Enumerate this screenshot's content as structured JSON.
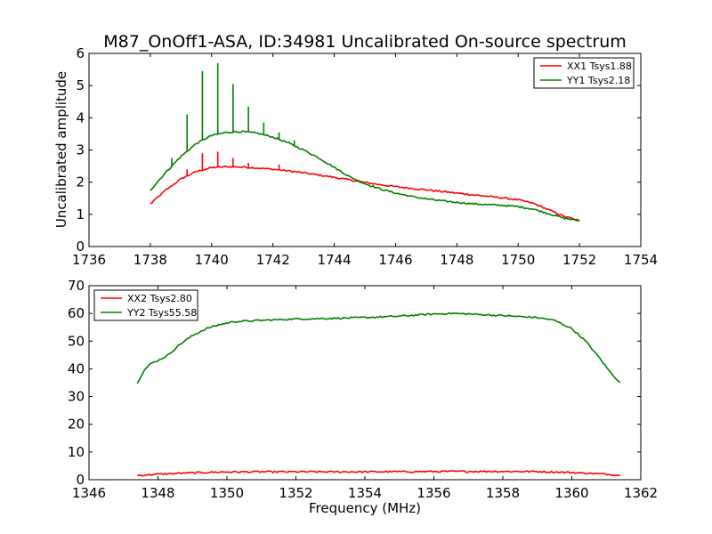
{
  "chart_data": [
    {
      "type": "line",
      "title": "M87_OnOff1-ASA, ID:34981 Uncalibrated On-source spectrum",
      "xlabel": "",
      "ylabel": "Uncalibrated amplitude",
      "xlim": [
        1736,
        1754
      ],
      "ylim": [
        0,
        6
      ],
      "xticks": [
        "1736",
        "1738",
        "1740",
        "1742",
        "1744",
        "1746",
        "1748",
        "1750",
        "1752",
        "1754"
      ],
      "yticks": [
        "0",
        "1",
        "2",
        "3",
        "4",
        "5",
        "6"
      ],
      "legend_placement": "top-right",
      "series": [
        {
          "name": "XX1 Tsys1.88",
          "color": "#ff0000",
          "x": [
            1738.0,
            1738.5,
            1739.0,
            1739.5,
            1740.0,
            1740.5,
            1741.0,
            1741.5,
            1742.0,
            1742.5,
            1743.0,
            1743.5,
            1744.0,
            1744.5,
            1745.0,
            1745.5,
            1746.0,
            1746.5,
            1747.0,
            1747.5,
            1748.0,
            1748.5,
            1749.0,
            1749.5,
            1750.0,
            1750.5,
            1751.0,
            1751.5,
            1752.0
          ],
          "y": [
            1.32,
            1.75,
            2.1,
            2.33,
            2.45,
            2.48,
            2.47,
            2.44,
            2.4,
            2.35,
            2.29,
            2.22,
            2.15,
            2.07,
            1.99,
            1.92,
            1.86,
            1.81,
            1.76,
            1.71,
            1.66,
            1.61,
            1.56,
            1.51,
            1.45,
            1.34,
            1.14,
            0.94,
            0.8
          ],
          "spikes": [
            {
              "x": 1739.2,
              "y": 2.4
            },
            {
              "x": 1739.7,
              "y": 2.9
            },
            {
              "x": 1740.2,
              "y": 2.95
            },
            {
              "x": 1740.7,
              "y": 2.75
            },
            {
              "x": 1741.2,
              "y": 2.6
            },
            {
              "x": 1742.2,
              "y": 2.55
            }
          ]
        },
        {
          "name": "YY1 Tsys2.18",
          "color": "#008000",
          "x": [
            1738.0,
            1738.5,
            1739.0,
            1739.5,
            1740.0,
            1740.5,
            1741.0,
            1741.5,
            1742.0,
            1742.5,
            1743.0,
            1743.5,
            1744.0,
            1744.5,
            1745.0,
            1745.5,
            1746.0,
            1746.5,
            1747.0,
            1747.5,
            1748.0,
            1748.5,
            1749.0,
            1749.5,
            1750.0,
            1750.5,
            1751.0,
            1751.5,
            1752.0
          ],
          "y": [
            1.75,
            2.3,
            2.8,
            3.2,
            3.45,
            3.55,
            3.57,
            3.52,
            3.4,
            3.22,
            3.0,
            2.75,
            2.46,
            2.17,
            1.95,
            1.79,
            1.66,
            1.56,
            1.48,
            1.42,
            1.37,
            1.33,
            1.3,
            1.28,
            1.24,
            1.16,
            1.02,
            0.88,
            0.8
          ],
          "spikes": [
            {
              "x": 1738.7,
              "y": 2.75
            },
            {
              "x": 1739.2,
              "y": 4.1
            },
            {
              "x": 1739.7,
              "y": 5.45
            },
            {
              "x": 1740.2,
              "y": 5.7
            },
            {
              "x": 1740.7,
              "y": 5.05
            },
            {
              "x": 1741.2,
              "y": 4.35
            },
            {
              "x": 1741.7,
              "y": 3.85
            },
            {
              "x": 1742.2,
              "y": 3.55
            },
            {
              "x": 1742.7,
              "y": 3.3
            }
          ]
        }
      ]
    },
    {
      "type": "line",
      "title": "",
      "xlabel": "Frequency (MHz)",
      "ylabel": "",
      "xlim": [
        1346,
        1362
      ],
      "ylim": [
        0,
        70
      ],
      "xticks": [
        "1346",
        "1348",
        "1350",
        "1352",
        "1354",
        "1356",
        "1358",
        "1360",
        "1362"
      ],
      "yticks": [
        "0",
        "10",
        "20",
        "30",
        "40",
        "50",
        "60",
        "70"
      ],
      "legend_placement": "top-left",
      "series": [
        {
          "name": "XX2 Tsys2.80",
          "color": "#ff0000",
          "x": [
            1347.4,
            1348.0,
            1349.0,
            1350.0,
            1351.0,
            1352.0,
            1353.0,
            1354.0,
            1355.0,
            1356.0,
            1357.0,
            1358.0,
            1359.0,
            1360.0,
            1361.0,
            1361.4
          ],
          "y": [
            1.5,
            2.0,
            2.5,
            2.8,
            2.85,
            2.85,
            2.85,
            2.85,
            2.9,
            2.95,
            3.0,
            3.0,
            2.95,
            2.6,
            2.0,
            1.6
          ]
        },
        {
          "name": "YY2 Tsys55.58",
          "color": "#008000",
          "x": [
            1347.4,
            1347.6,
            1347.8,
            1348.0,
            1348.3,
            1348.6,
            1349.0,
            1349.4,
            1349.8,
            1350.2,
            1351.0,
            1352.0,
            1353.0,
            1354.0,
            1355.0,
            1356.0,
            1356.5,
            1357.0,
            1358.0,
            1359.0,
            1359.5,
            1360.0,
            1360.4,
            1360.8,
            1361.1,
            1361.4
          ],
          "y": [
            35.0,
            39.5,
            42.0,
            43.0,
            45.0,
            48.5,
            52.0,
            54.5,
            56.0,
            57.0,
            57.5,
            58.0,
            58.2,
            58.5,
            59.0,
            59.8,
            60.0,
            59.8,
            59.2,
            58.5,
            57.5,
            54.5,
            50.0,
            44.0,
            39.0,
            35.0
          ]
        }
      ]
    }
  ]
}
